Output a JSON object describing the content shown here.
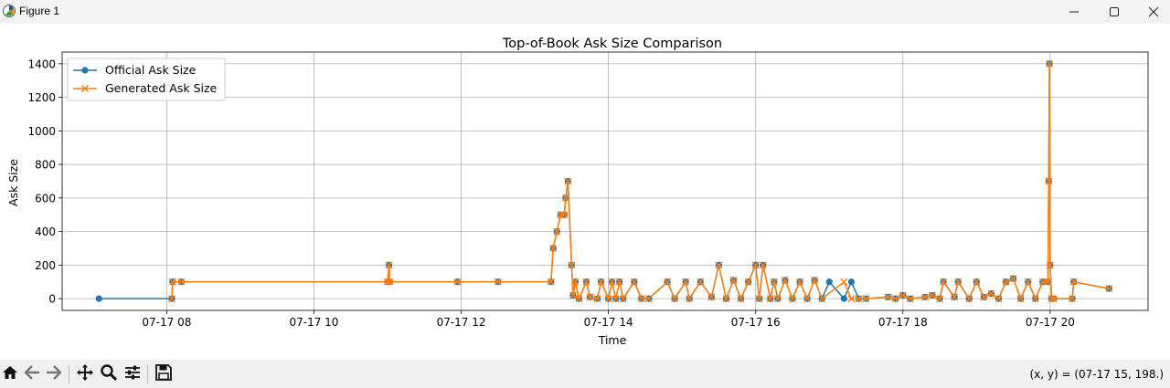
{
  "window": {
    "title": "Figure 1",
    "app_icon": "matplotlib-figure-icon",
    "controls": [
      "minimize-icon",
      "maximize-icon",
      "close-icon"
    ]
  },
  "toolbar": {
    "tools": [
      "home-icon",
      "back-arrow-icon",
      "forward-arrow-icon",
      "pan-icon",
      "zoom-icon",
      "configure-subplots-icon",
      "save-icon"
    ],
    "coords": "(x, y) = (07-17 15, 198.)"
  },
  "colors": {
    "official": "#1f77b4",
    "generated": "#ff7f0e",
    "grid": "#b0b0b0"
  },
  "chart_data": {
    "type": "line",
    "title": "Top-of-Book Ask Size Comparison",
    "xlabel": "Time",
    "ylabel": "Ask Size",
    "x_unit": "hours (July 17)",
    "xlim": [
      6.58,
      21.33
    ],
    "ylim": [
      -70,
      1470
    ],
    "xticks": [
      8,
      10,
      12,
      14,
      16,
      18,
      20
    ],
    "xtick_labels": [
      "07-17 08",
      "07-17 10",
      "07-17 12",
      "07-17 14",
      "07-17 16",
      "07-17 18",
      "07-17 20"
    ],
    "yticks": [
      0,
      200,
      400,
      600,
      800,
      1000,
      1200,
      1400
    ],
    "ytick_labels": [
      "0",
      "200",
      "400",
      "600",
      "800",
      "1000",
      "1200",
      "1400"
    ],
    "grid": true,
    "legend_position": "top-left",
    "series": [
      {
        "name": "Official Ask Size",
        "marker": "circle",
        "x": [
          7.08,
          8.07,
          8.08,
          8.2,
          11.0,
          11.02,
          11.03,
          11.95,
          12.5,
          13.22,
          13.25,
          13.3,
          13.35,
          13.4,
          13.42,
          13.45,
          13.5,
          13.52,
          13.55,
          13.6,
          13.7,
          13.75,
          13.85,
          13.9,
          14.0,
          14.05,
          14.1,
          14.15,
          14.2,
          14.35,
          14.45,
          14.55,
          14.8,
          14.9,
          15.05,
          15.1,
          15.25,
          15.4,
          15.5,
          15.6,
          15.7,
          15.8,
          15.9,
          16.0,
          16.05,
          16.1,
          16.2,
          16.25,
          16.3,
          16.4,
          16.5,
          16.6,
          16.7,
          16.8,
          16.9,
          17.0,
          17.2,
          17.3,
          17.4,
          17.5,
          17.8,
          17.9,
          18.0,
          18.1,
          18.3,
          18.4,
          18.5,
          18.55,
          18.7,
          18.75,
          18.9,
          19.0,
          19.1,
          19.2,
          19.3,
          19.4,
          19.5,
          19.6,
          19.7,
          19.8,
          19.9,
          19.97,
          19.98,
          19.99,
          20.0,
          20.02,
          20.05,
          20.3,
          20.32,
          20.8
        ],
        "y": [
          0,
          0,
          100,
          100,
          100,
          200,
          100,
          100,
          100,
          100,
          300,
          400,
          500,
          500,
          600,
          700,
          200,
          20,
          100,
          0,
          100,
          10,
          0,
          100,
          0,
          100,
          0,
          100,
          0,
          100,
          0,
          0,
          100,
          0,
          100,
          0,
          100,
          10,
          200,
          0,
          110,
          0,
          100,
          200,
          0,
          200,
          0,
          100,
          0,
          110,
          0,
          100,
          0,
          110,
          0,
          100,
          0,
          100,
          0,
          0,
          10,
          0,
          20,
          0,
          10,
          20,
          0,
          100,
          10,
          100,
          0,
          100,
          10,
          30,
          0,
          100,
          120,
          0,
          100,
          0,
          100,
          100,
          700,
          1400,
          200,
          0,
          0,
          0,
          100,
          60
        ]
      },
      {
        "name": "Generated Ask Size",
        "marker": "x",
        "x": [
          8.07,
          8.08,
          8.2,
          11.0,
          11.02,
          11.03,
          11.95,
          12.5,
          13.22,
          13.25,
          13.3,
          13.35,
          13.4,
          13.42,
          13.45,
          13.5,
          13.52,
          13.55,
          13.6,
          13.7,
          13.75,
          13.85,
          13.9,
          14.0,
          14.05,
          14.1,
          14.15,
          14.2,
          14.35,
          14.45,
          14.55,
          14.8,
          14.9,
          15.05,
          15.1,
          15.25,
          15.4,
          15.5,
          15.6,
          15.7,
          15.8,
          15.9,
          16.0,
          16.05,
          16.1,
          16.2,
          16.25,
          16.3,
          16.4,
          16.5,
          16.6,
          16.7,
          16.8,
          16.9,
          17.2,
          17.3,
          17.4,
          17.5,
          17.8,
          17.9,
          18.0,
          18.1,
          18.3,
          18.4,
          18.5,
          18.55,
          18.7,
          18.75,
          18.9,
          19.0,
          19.1,
          19.2,
          19.3,
          19.4,
          19.5,
          19.6,
          19.7,
          19.8,
          19.9,
          19.97,
          19.98,
          19.99,
          20.0,
          20.02,
          20.05,
          20.3,
          20.32,
          20.8
        ],
        "y": [
          0,
          100,
          100,
          100,
          200,
          100,
          100,
          100,
          100,
          300,
          400,
          500,
          500,
          600,
          700,
          200,
          20,
          100,
          0,
          100,
          10,
          0,
          100,
          0,
          100,
          0,
          100,
          0,
          100,
          0,
          0,
          100,
          0,
          100,
          0,
          100,
          10,
          200,
          0,
          110,
          0,
          100,
          200,
          0,
          200,
          0,
          100,
          0,
          110,
          0,
          100,
          0,
          110,
          0,
          100,
          0,
          0,
          0,
          10,
          0,
          20,
          0,
          10,
          20,
          0,
          100,
          10,
          100,
          0,
          100,
          10,
          30,
          0,
          100,
          120,
          0,
          100,
          0,
          100,
          100,
          700,
          1400,
          200,
          0,
          0,
          0,
          100,
          60
        ]
      }
    ]
  }
}
